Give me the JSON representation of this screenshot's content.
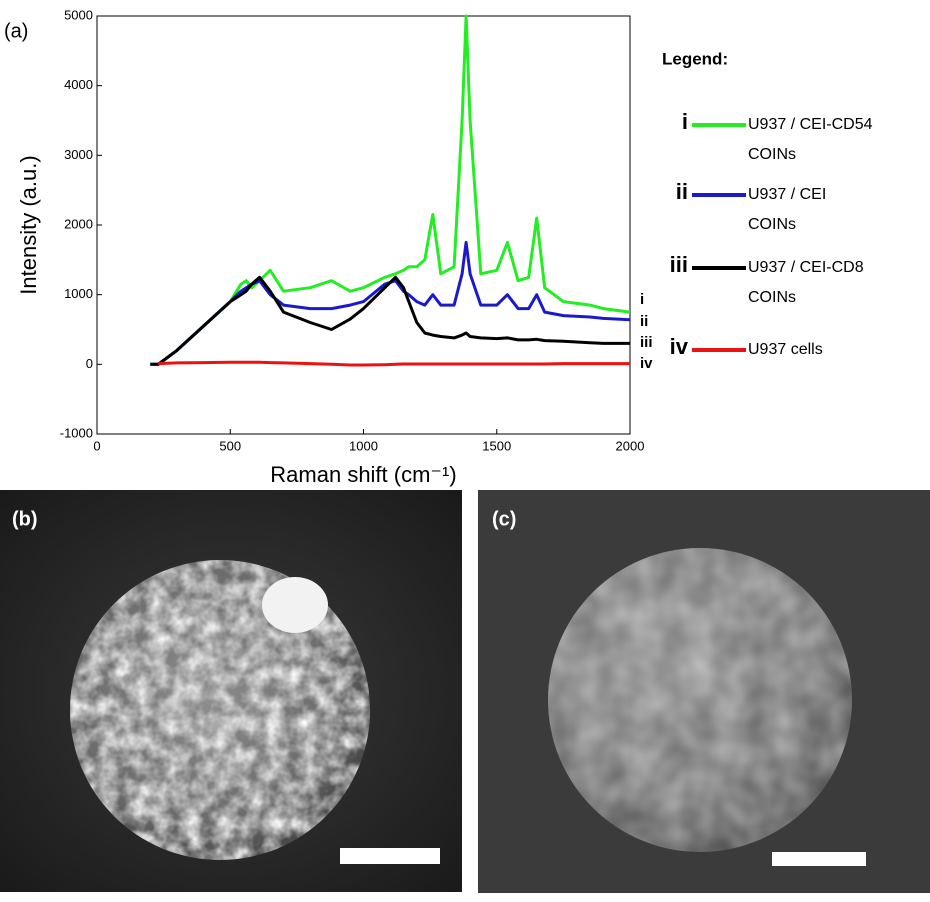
{
  "chart_data": {
    "type": "line",
    "panel_label": "(a)",
    "x_label": "Raman shift (cm⁻¹)",
    "y_label": "Intensity (a.u.)",
    "legend_title": "Legend:",
    "legend_position": "right",
    "xlim": [
      0,
      2000
    ],
    "xticks": [
      0,
      500,
      1000,
      1500,
      2000
    ],
    "ylim": [
      -1000,
      5000
    ],
    "yticks": [
      -1000,
      0,
      1000,
      2000,
      3000,
      4000,
      5000
    ],
    "grid": false,
    "x": [
      200,
      230,
      300,
      400,
      500,
      540,
      560,
      580,
      610,
      650,
      700,
      800,
      880,
      950,
      1000,
      1080,
      1120,
      1150,
      1170,
      1200,
      1230,
      1260,
      1290,
      1340,
      1370,
      1385,
      1400,
      1440,
      1500,
      1540,
      1580,
      1620,
      1650,
      1680,
      1750,
      1850,
      1900,
      2000
    ],
    "series": [
      {
        "name": "U937 / CEI-CD54 COINs",
        "label": "i",
        "color": "#22ee22",
        "values": [
          0,
          0,
          200,
          550,
          900,
          1150,
          1200,
          1100,
          1200,
          1350,
          1050,
          1100,
          1200,
          1050,
          1100,
          1250,
          1300,
          1350,
          1400,
          1400,
          1500,
          2150,
          1300,
          1400,
          3500,
          5000,
          3500,
          1300,
          1350,
          1750,
          1200,
          1250,
          2100,
          1100,
          900,
          850,
          800,
          750
        ]
      },
      {
        "name": "U937 / CEI COINs",
        "label": "ii",
        "color": "#1a1acc",
        "values": [
          0,
          0,
          200,
          550,
          900,
          1050,
          1100,
          1150,
          1200,
          1000,
          850,
          800,
          800,
          850,
          900,
          1150,
          1200,
          1050,
          1000,
          900,
          850,
          1000,
          850,
          850,
          1300,
          1750,
          1300,
          850,
          850,
          1000,
          800,
          800,
          1000,
          750,
          700,
          680,
          660,
          640
        ]
      },
      {
        "name": "U937 / CEI-CD8 COINs",
        "label": "iii",
        "color": "#000000",
        "values": [
          0,
          0,
          200,
          550,
          900,
          1000,
          1050,
          1150,
          1250,
          1050,
          750,
          600,
          500,
          650,
          800,
          1100,
          1250,
          1100,
          900,
          600,
          450,
          420,
          400,
          380,
          420,
          450,
          400,
          380,
          370,
          380,
          350,
          350,
          360,
          340,
          330,
          310,
          300,
          300
        ]
      },
      {
        "name": "U937 cells",
        "label": "iv",
        "color": "#ee1111",
        "values": [
          null,
          10,
          20,
          25,
          30,
          30,
          30,
          30,
          30,
          25,
          20,
          10,
          0,
          -10,
          -10,
          -5,
          0,
          5,
          5,
          5,
          5,
          5,
          5,
          5,
          5,
          5,
          5,
          5,
          5,
          5,
          5,
          5,
          5,
          5,
          10,
          10,
          10,
          10
        ]
      }
    ]
  },
  "images": [
    {
      "label": "(b)"
    },
    {
      "label": "(c)"
    }
  ]
}
